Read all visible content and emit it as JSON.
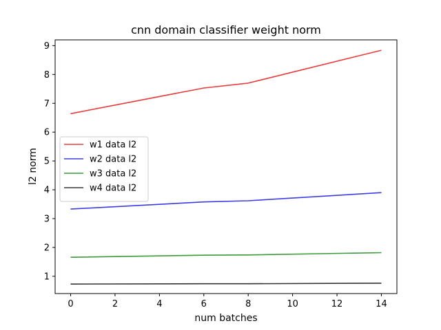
{
  "chart_data": {
    "type": "line",
    "title": "cnn domain classifier weight norm",
    "xlabel": "num batches",
    "ylabel": "l2 norm",
    "xlim": [
      -0.7,
      14.7
    ],
    "ylim": [
      0.4,
      9.2
    ],
    "xticks": [
      0,
      2,
      4,
      6,
      8,
      10,
      12,
      14
    ],
    "yticks": [
      1,
      2,
      3,
      4,
      5,
      6,
      7,
      8,
      9
    ],
    "grid": false,
    "legend_position": "center-left",
    "x": [
      0,
      6,
      8,
      14
    ],
    "series": [
      {
        "name": "w1 data l2",
        "color": "#e83b3b",
        "values": [
          6.64,
          7.53,
          7.7,
          8.84
        ]
      },
      {
        "name": "w2 data l2",
        "color": "#3b3be3",
        "values": [
          3.33,
          3.58,
          3.62,
          3.9
        ]
      },
      {
        "name": "w3 data l2",
        "color": "#3a9a3a",
        "values": [
          1.66,
          1.73,
          1.74,
          1.82
        ]
      },
      {
        "name": "w4 data l2",
        "color": "#333333",
        "values": [
          0.73,
          0.74,
          0.74,
          0.76
        ]
      }
    ]
  }
}
